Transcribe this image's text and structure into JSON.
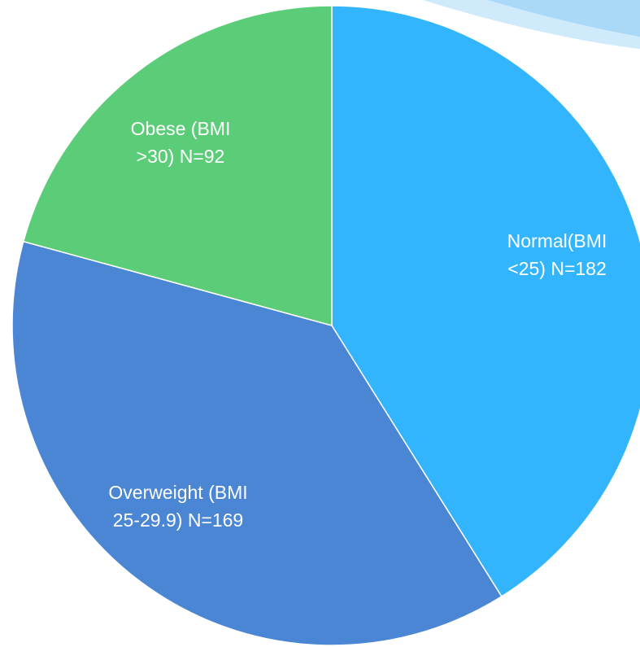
{
  "chart_data": {
    "type": "pie",
    "categories": [
      "Normal(BMI <25)",
      "Overweight (BMI 25-29.9)",
      "Obese (BMI >30)"
    ],
    "values": [
      182,
      169,
      92
    ],
    "value_labels": [
      "N=182",
      "N=169",
      "N=92"
    ],
    "colors": [
      "#33b5fd",
      "#4a86d4",
      "#5bcd78"
    ]
  }
}
